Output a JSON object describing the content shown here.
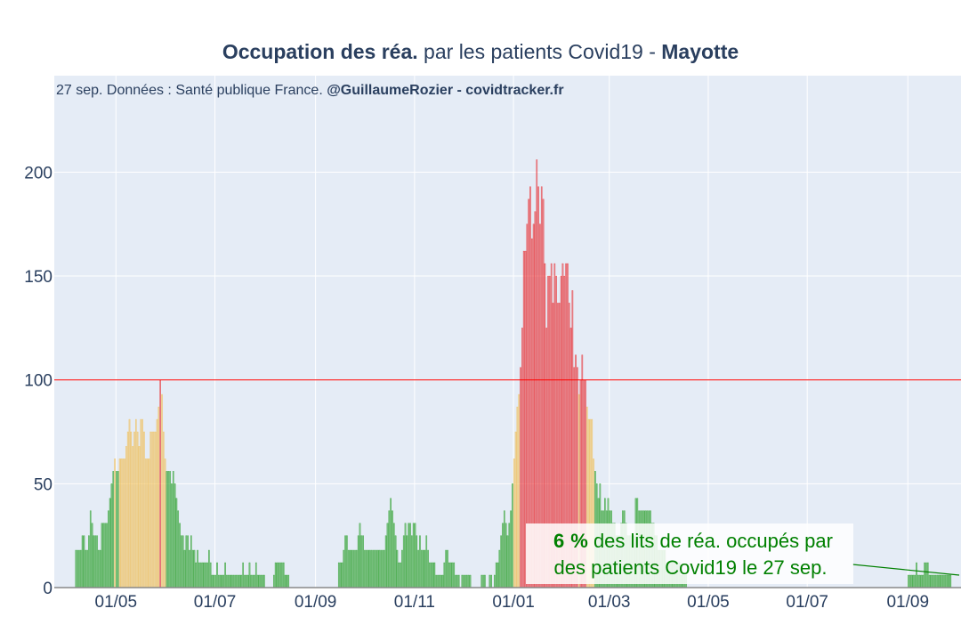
{
  "chart_data": {
    "type": "bar",
    "title_bold_1": "Occupation des réa.",
    "title_mid": " par les patients Covid19 - ",
    "title_bold_2": "Mayotte",
    "source_prefix": "27 sep. Données : Santé publique France. ",
    "source_bold": "@GuillaumeRozier - covidtracker.fr",
    "xlabel": "",
    "ylabel": "",
    "ylim": [
      0,
      230
    ],
    "yticks": [
      0,
      50,
      100,
      150,
      200
    ],
    "xtick_labels": [
      "01/05",
      "01/07",
      "01/09",
      "01/11",
      "01/01",
      "01/03",
      "01/05",
      "01/07",
      "01/09"
    ],
    "threshold_line": 100,
    "grid": true,
    "legend": "none",
    "colors": {
      "low": "#2ca02c",
      "medium": "#f0c05a",
      "high": "#e8363a",
      "threshold": "#ff0000",
      "plot_bg": "#e5ecf6",
      "text": "#2a3f5f"
    },
    "annotation": {
      "value": "6",
      "unit": "%",
      "line1_rest": " des lits de réa. occupés par",
      "line2": "des patients Covid19 le 27 sep."
    },
    "segments": [
      {
        "start": "2020-04-06",
        "values": [
          18,
          18,
          18,
          18,
          25,
          25,
          18,
          18,
          25,
          37,
          31,
          25,
          25,
          25,
          18,
          18,
          31,
          31,
          31,
          31,
          37,
          43,
          50,
          56,
          62,
          56,
          56,
          62,
          62,
          62,
          62,
          68,
          75,
          81,
          75,
          68,
          75,
          81,
          75,
          68,
          81,
          81,
          75,
          62,
          62,
          62,
          75,
          75,
          75,
          75,
          81,
          87,
          100,
          93,
          75,
          62,
          56,
          56,
          56,
          50,
          56,
          50,
          43,
          37,
          31,
          25,
          25,
          18,
          25,
          25,
          18,
          25,
          18,
          18,
          12,
          18,
          12,
          12,
          12,
          12,
          12,
          12,
          18,
          12,
          6,
          6,
          6,
          12,
          6,
          6,
          6,
          6,
          12,
          6,
          6,
          6,
          6,
          6,
          6,
          6,
          6,
          6,
          6,
          12,
          6,
          6,
          6,
          12,
          6,
          6,
          6,
          12,
          6,
          6,
          6,
          6,
          6,
          0,
          0,
          0,
          0,
          0,
          6,
          12,
          12,
          12,
          12,
          12,
          12,
          6,
          6,
          6,
          0,
          0,
          0,
          0,
          0,
          0,
          0,
          0,
          0,
          0
        ]
      },
      {
        "start": "2020-09-15",
        "values": [
          12,
          12,
          12,
          18,
          25,
          25,
          18,
          18,
          18,
          18,
          18,
          18,
          25,
          31,
          25,
          25,
          18,
          18,
          18,
          18,
          18,
          18,
          18,
          18,
          18,
          18,
          18,
          18,
          18,
          25,
          31,
          37,
          43,
          37,
          31,
          25,
          18,
          12,
          12,
          18,
          25,
          31,
          25,
          31,
          31,
          25,
          31,
          31,
          25,
          18,
          25,
          18,
          18,
          18,
          25,
          18,
          12,
          12,
          12,
          12,
          6,
          6,
          6,
          6,
          6,
          12,
          18,
          18,
          12,
          12,
          12,
          12,
          6,
          6,
          6,
          0,
          6,
          6,
          6,
          6,
          6,
          6,
          0,
          0,
          0,
          0
        ]
      },
      {
        "start": "2020-12-12",
        "values": [
          6,
          6,
          6,
          0,
          0,
          6,
          6,
          0,
          6,
          12,
          12,
          18,
          25,
          31,
          37,
          31,
          25,
          31,
          37,
          50,
          62,
          75,
          87,
          93,
          106,
          125,
          162,
          162,
          175,
          187,
          193,
          168,
          175,
          181,
          206,
          193,
          175,
          193,
          187,
          156,
          125,
          150,
          150,
          156,
          137,
          156,
          150,
          137,
          137,
          150,
          156,
          150,
          156,
          156,
          137,
          125,
          143,
          106,
          112,
          106,
          93,
          100,
          112,
          100,
          100,
          87,
          81,
          81,
          81,
          62,
          56,
          50,
          43,
          50,
          37,
          37,
          43,
          37,
          43,
          37,
          37,
          31,
          31,
          25,
          25,
          25,
          31,
          37,
          37,
          31,
          25,
          25,
          25,
          25,
          25,
          43,
          43,
          37,
          37,
          37,
          37,
          37,
          37,
          37,
          37,
          31,
          31,
          25,
          25,
          18,
          18,
          18,
          18,
          18,
          12,
          12,
          12,
          12,
          12,
          12,
          12,
          12,
          12,
          6,
          6,
          6,
          6
        ]
      },
      {
        "start": "2021-09-01",
        "values": [
          6,
          6,
          6,
          6,
          6,
          12,
          6,
          6,
          6,
          6,
          12,
          12,
          12,
          6,
          6,
          6,
          6,
          6,
          6,
          6,
          6,
          6,
          6,
          6,
          6,
          6,
          6
        ]
      }
    ]
  }
}
